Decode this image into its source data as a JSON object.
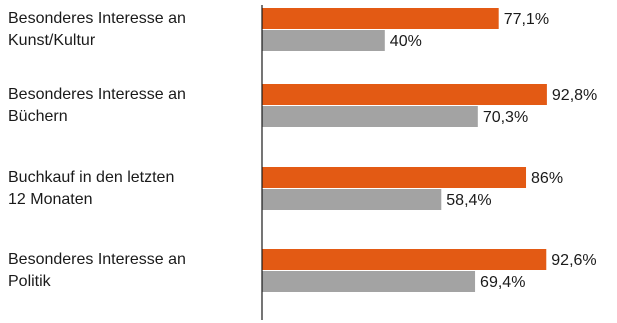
{
  "chart_data": {
    "type": "bar",
    "orientation": "horizontal",
    "categories": [
      [
        "Besonderes Interesse an",
        "Kunst/Kultur"
      ],
      [
        "Besonderes Interesse an",
        "Büchern"
      ],
      [
        "Buchkauf in den letzten",
        "12 Monaten"
      ],
      [
        "Besonderes Interesse an",
        "Politik"
      ]
    ],
    "series": [
      {
        "color": "#e35a14",
        "values": [
          77.1,
          92.8,
          86,
          92.6
        ],
        "labels": [
          "77,1%",
          "92,8%",
          "86%",
          "92,6%"
        ]
      },
      {
        "color": "#a3a3a3",
        "values": [
          40,
          70.3,
          58.4,
          69.4
        ],
        "labels": [
          "40%",
          "70,3%",
          "58,4%",
          "69,4%"
        ]
      }
    ],
    "xlim": [
      0,
      100
    ],
    "grid": false,
    "legend": "none",
    "value_labels": "outside-end"
  }
}
